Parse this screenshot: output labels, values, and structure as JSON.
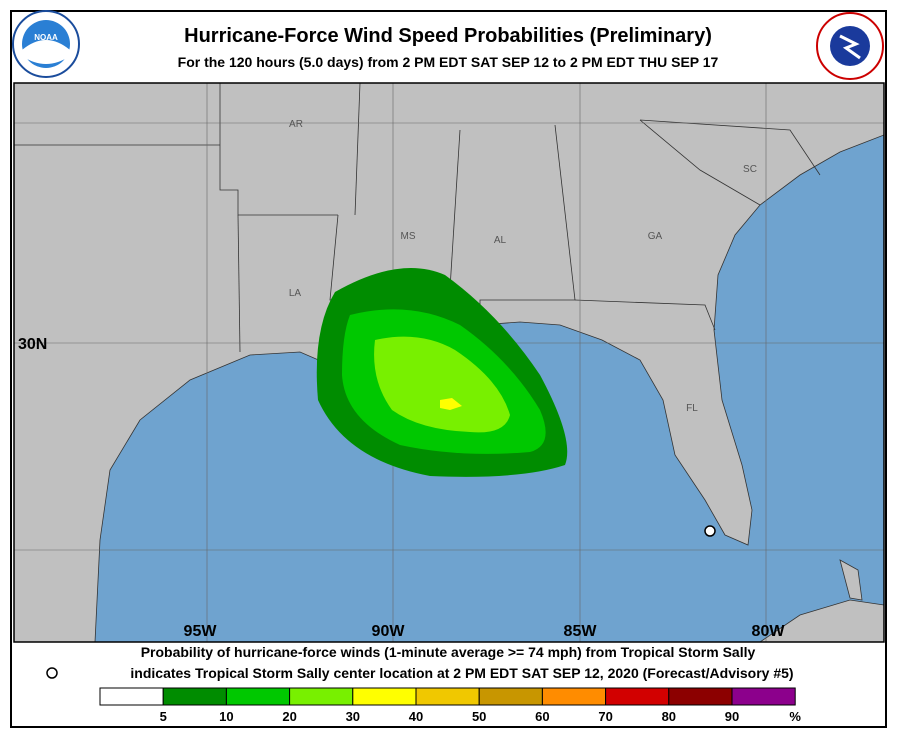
{
  "header": {
    "title": "Hurricane-Force Wind Speed Probabilities (Preliminary)",
    "subtitle": "For the 120 hours (5.0 days) from 2 PM EDT SAT SEP 12 to 2 PM EDT THU SEP 17"
  },
  "map": {
    "state_labels": [
      "AR",
      "MS",
      "AL",
      "GA",
      "SC",
      "LA",
      "FL"
    ],
    "lat_labels": [
      "30N"
    ],
    "lon_labels": [
      "95W",
      "90W",
      "85W",
      "80W"
    ]
  },
  "caption": {
    "line1": "Probability of hurricane-force winds (1-minute average >= 74 mph) from Tropical Storm Sally",
    "line2": "indicates Tropical Storm Sally center location at 2 PM EDT SAT SEP 12, 2020 (Forecast/Advisory #5)"
  },
  "legend": {
    "colors": [
      "#ffffff",
      "#008c00",
      "#00c800",
      "#78f000",
      "#ffff00",
      "#f0c800",
      "#c89600",
      "#ff8c00",
      "#d20000",
      "#8c0000",
      "#8c008c"
    ],
    "ticks": [
      5,
      10,
      20,
      30,
      40,
      50,
      60,
      70,
      80,
      90
    ],
    "unit": "%"
  }
}
